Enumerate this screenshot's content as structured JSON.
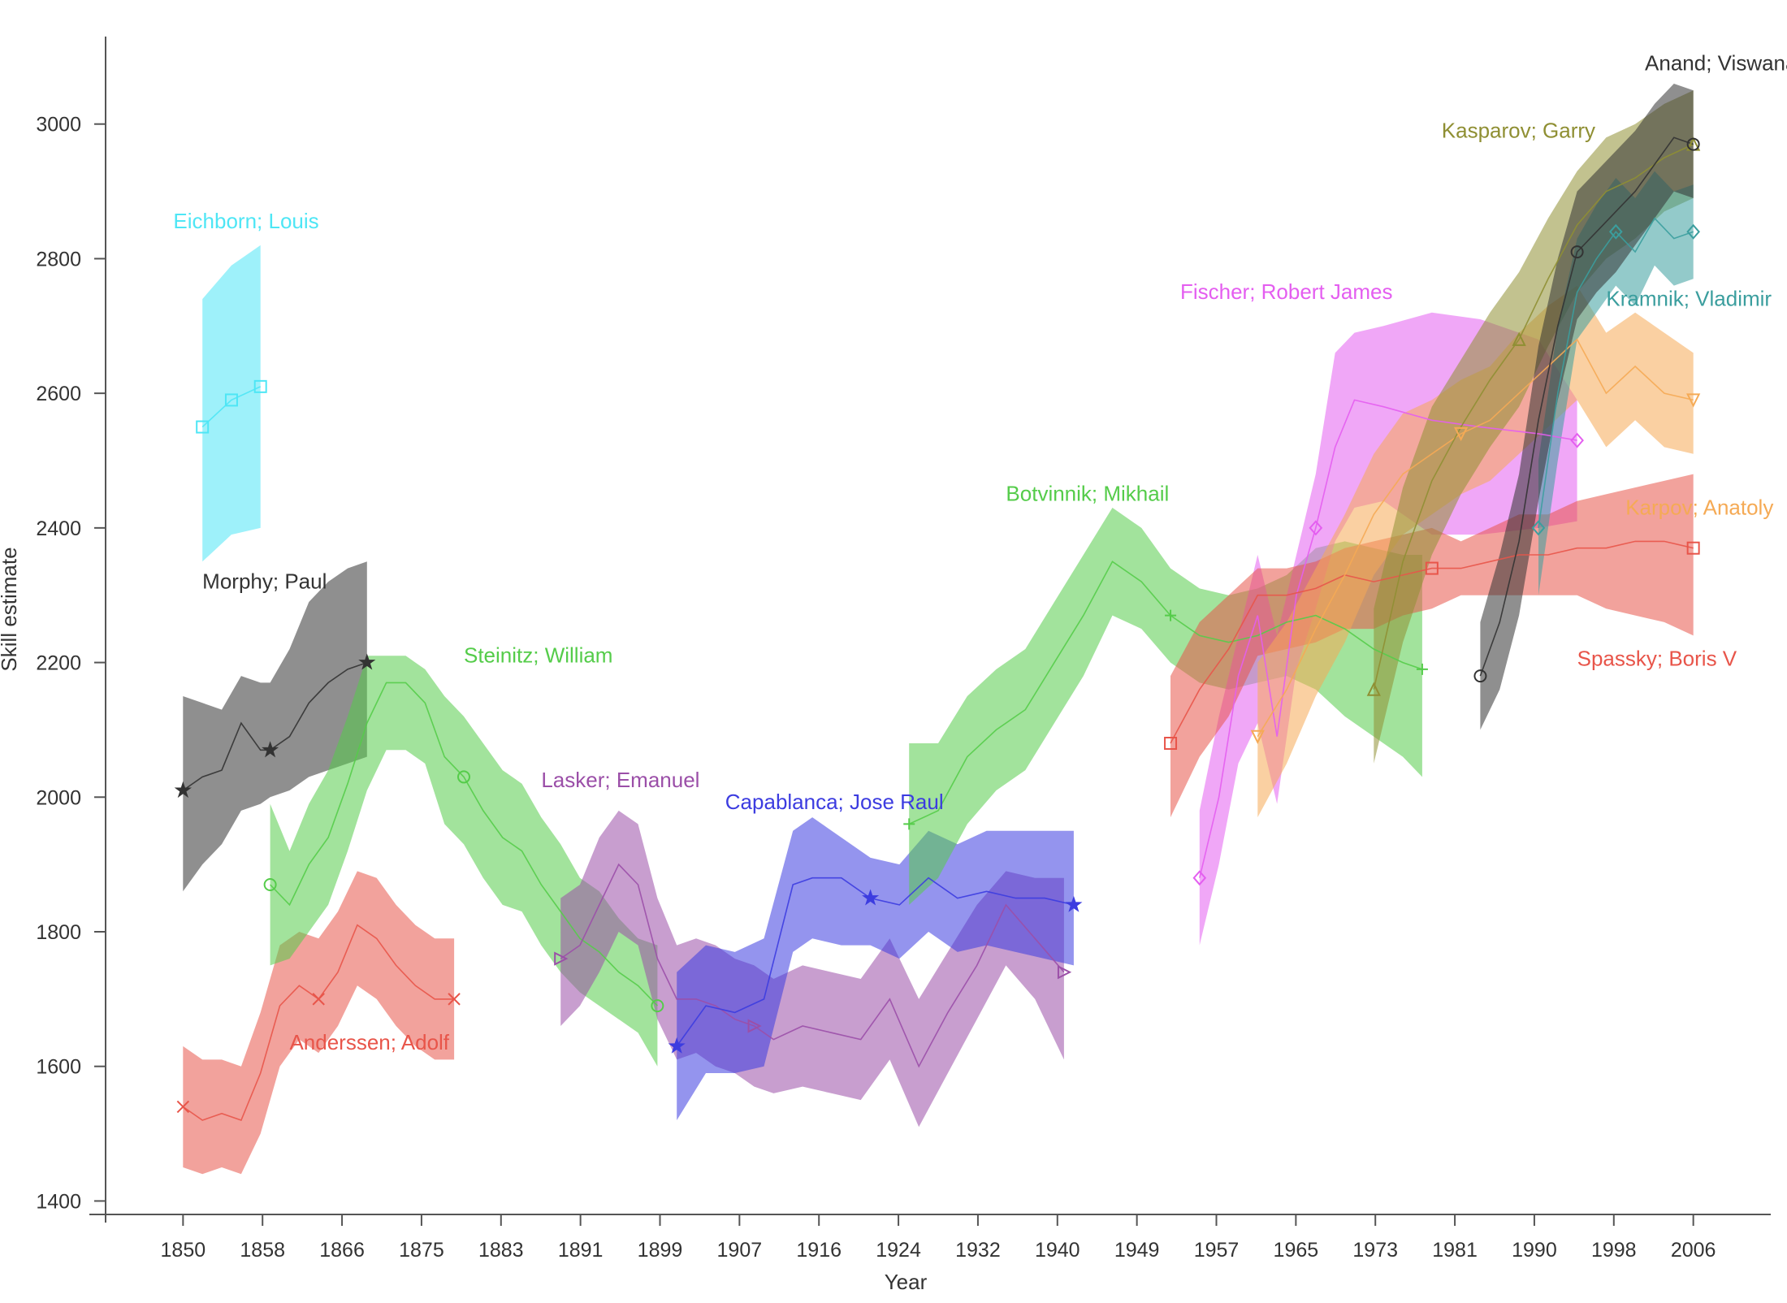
{
  "chart_data": {
    "type": "area",
    "title": "",
    "xlabel": "Year",
    "ylabel": "Skill estimate",
    "xlim": [
      1842,
      2014
    ],
    "ylim": [
      1380,
      3130
    ],
    "x_tick_labels": [
      "1850",
      "1858",
      "1866",
      "1875",
      "1883",
      "1891",
      "1899",
      "1907",
      "1916",
      "1924",
      "1932",
      "1940",
      "1949",
      "1957",
      "1965",
      "1973",
      "1981",
      "1990",
      "1998",
      "2006"
    ],
    "y_ticks": [
      1400,
      1600,
      1800,
      2000,
      2200,
      2400,
      2600,
      2800,
      3000
    ],
    "y_tick_labels": [
      "1400",
      "1600",
      "1800",
      "2000",
      "2200",
      "2400",
      "2600",
      "2800",
      "3000"
    ],
    "grid": false,
    "legend": "none",
    "series": [
      {
        "name": "Anderssen; Adolf",
        "color": "#e8554a",
        "marker": "x",
        "x": [
          1850,
          1852,
          1854,
          1856,
          1858,
          1860,
          1862,
          1864,
          1866,
          1868,
          1870,
          1872,
          1874,
          1876,
          1878
        ],
        "y": [
          1540,
          1520,
          1530,
          1520,
          1590,
          1690,
          1720,
          1700,
          1740,
          1810,
          1790,
          1750,
          1720,
          1700,
          1700
        ],
        "low": [
          1450,
          1440,
          1450,
          1440,
          1500,
          1600,
          1640,
          1620,
          1660,
          1720,
          1700,
          1660,
          1630,
          1610,
          1610
        ],
        "high": [
          1630,
          1610,
          1610,
          1600,
          1680,
          1780,
          1800,
          1790,
          1830,
          1890,
          1880,
          1840,
          1810,
          1790,
          1790
        ],
        "label_pos": [
          1861,
          1625
        ]
      },
      {
        "name": "Eichborn; Louis",
        "color": "#4ee6f5",
        "marker": "square",
        "x": [
          1852,
          1855,
          1858
        ],
        "y": [
          2550,
          2590,
          2610
        ],
        "low": [
          2350,
          2390,
          2400
        ],
        "high": [
          2740,
          2790,
          2820
        ],
        "label_pos": [
          1849,
          2845
        ]
      },
      {
        "name": "Morphy; Paul",
        "color": "#333333",
        "marker": "star",
        "x": [
          1850,
          1852,
          1854,
          1856,
          1858,
          1859,
          1861,
          1863,
          1865,
          1867,
          1869
        ],
        "y": [
          2010,
          2030,
          2040,
          2110,
          2070,
          2070,
          2090,
          2140,
          2170,
          2190,
          2200
        ],
        "low": [
          1860,
          1900,
          1930,
          1980,
          1990,
          2000,
          2010,
          2030,
          2040,
          2050,
          2060
        ],
        "high": [
          2150,
          2140,
          2130,
          2180,
          2170,
          2170,
          2220,
          2290,
          2320,
          2340,
          2350
        ],
        "label_pos": [
          1852,
          2310
        ]
      },
      {
        "name": "Steinitz; William",
        "color": "#55cc4a",
        "marker": "circle",
        "x": [
          1859,
          1861,
          1863,
          1865,
          1867,
          1869,
          1871,
          1873,
          1875,
          1877,
          1879,
          1881,
          1883,
          1885,
          1887,
          1889,
          1891,
          1893,
          1895,
          1897,
          1899
        ],
        "y": [
          1870,
          1840,
          1900,
          1940,
          2020,
          2110,
          2170,
          2170,
          2140,
          2060,
          2030,
          1980,
          1940,
          1920,
          1870,
          1830,
          1790,
          1770,
          1740,
          1720,
          1690
        ],
        "low": [
          1750,
          1760,
          1800,
          1840,
          1920,
          2010,
          2070,
          2070,
          2050,
          1960,
          1930,
          1880,
          1840,
          1830,
          1780,
          1740,
          1710,
          1690,
          1670,
          1650,
          1600
        ],
        "high": [
          1990,
          1920,
          1990,
          2040,
          2120,
          2210,
          2210,
          2210,
          2190,
          2150,
          2120,
          2080,
          2040,
          2020,
          1970,
          1930,
          1880,
          1860,
          1820,
          1790,
          1780
        ],
        "label_pos": [
          1879,
          2200
        ]
      },
      {
        "name": "Lasker; Emanuel",
        "color": "#9b4fa8",
        "marker": "triangle-right",
        "x": [
          1889,
          1891,
          1893,
          1895,
          1897,
          1899,
          1901,
          1903,
          1905,
          1907,
          1909,
          1911,
          1914,
          1917,
          1920,
          1923,
          1926,
          1929,
          1932,
          1935,
          1938,
          1941
        ],
        "y": [
          1760,
          1780,
          1840,
          1900,
          1870,
          1760,
          1700,
          1700,
          1690,
          1670,
          1660,
          1640,
          1660,
          1650,
          1640,
          1700,
          1600,
          1680,
          1750,
          1840,
          1790,
          1740
        ],
        "low": [
          1660,
          1690,
          1740,
          1800,
          1780,
          1670,
          1610,
          1620,
          1600,
          1590,
          1570,
          1560,
          1570,
          1560,
          1550,
          1610,
          1510,
          1590,
          1670,
          1750,
          1700,
          1610
        ],
        "high": [
          1850,
          1870,
          1940,
          1980,
          1960,
          1850,
          1780,
          1790,
          1780,
          1760,
          1750,
          1730,
          1750,
          1740,
          1730,
          1790,
          1700,
          1770,
          1840,
          1890,
          1880,
          1880
        ],
        "label_pos": [
          1887,
          2015
        ]
      },
      {
        "name": "Capablanca; Jose Raul",
        "color": "#3c3ce0",
        "marker": "star",
        "x": [
          1901,
          1904,
          1907,
          1910,
          1913,
          1915,
          1918,
          1921,
          1924,
          1927,
          1930,
          1933,
          1936,
          1939,
          1942
        ],
        "y": [
          1630,
          1690,
          1680,
          1700,
          1870,
          1880,
          1880,
          1850,
          1840,
          1880,
          1850,
          1860,
          1850,
          1850,
          1840
        ],
        "low": [
          1520,
          1590,
          1590,
          1600,
          1770,
          1790,
          1780,
          1780,
          1760,
          1800,
          1770,
          1780,
          1770,
          1760,
          1750
        ],
        "high": [
          1740,
          1780,
          1770,
          1790,
          1950,
          1970,
          1940,
          1910,
          1900,
          1950,
          1930,
          1950,
          1950,
          1950,
          1950
        ],
        "label_pos": [
          1906,
          1982
        ]
      },
      {
        "name": "Botvinnik; Mikhail",
        "color": "#55cc4a",
        "marker": "plus",
        "x": [
          1925,
          1928,
          1931,
          1934,
          1937,
          1940,
          1943,
          1946,
          1949,
          1952,
          1955,
          1958,
          1961,
          1964,
          1967,
          1970,
          1973,
          1976,
          1978
        ],
        "y": [
          1960,
          1980,
          2060,
          2100,
          2130,
          2200,
          2270,
          2350,
          2320,
          2270,
          2240,
          2230,
          2240,
          2260,
          2270,
          2250,
          2220,
          2200,
          2190
        ],
        "low": [
          1840,
          1880,
          1960,
          2010,
          2040,
          2110,
          2180,
          2270,
          2250,
          2200,
          2170,
          2160,
          2170,
          2180,
          2160,
          2120,
          2090,
          2060,
          2030
        ],
        "high": [
          2080,
          2080,
          2150,
          2190,
          2220,
          2290,
          2360,
          2430,
          2400,
          2340,
          2310,
          2300,
          2310,
          2330,
          2370,
          2380,
          2370,
          2360,
          2360
        ],
        "label_pos": [
          1935,
          2440
        ]
      },
      {
        "name": "Fischer; Robert James",
        "color": "#e45ef0",
        "marker": "diamond",
        "x": [
          1955,
          1957,
          1959,
          1961,
          1963,
          1965,
          1967,
          1969,
          1971,
          1974,
          1979,
          1984,
          1990,
          1994
        ],
        "y": [
          1880,
          2000,
          2180,
          2270,
          2090,
          2300,
          2400,
          2520,
          2590,
          2580,
          2560,
          2550,
          2540,
          2530
        ],
        "low": [
          1780,
          1900,
          2050,
          2110,
          1990,
          2190,
          2280,
          2380,
          2430,
          2440,
          2390,
          2390,
          2400,
          2410
        ],
        "high": [
          1980,
          2120,
          2240,
          2360,
          2240,
          2360,
          2480,
          2660,
          2690,
          2700,
          2720,
          2710,
          2680,
          2590
        ],
        "label_pos": [
          1953,
          2740
        ]
      },
      {
        "name": "Spassky; Boris V",
        "color": "#e8554a",
        "marker": "square",
        "x": [
          1952,
          1955,
          1958,
          1961,
          1964,
          1967,
          1970,
          1973,
          1976,
          1979,
          1982,
          1985,
          1988,
          1991,
          1994,
          1997,
          2000,
          2003,
          2006
        ],
        "y": [
          2080,
          2160,
          2220,
          2300,
          2300,
          2310,
          2330,
          2320,
          2330,
          2340,
          2340,
          2350,
          2360,
          2360,
          2370,
          2370,
          2380,
          2380,
          2370
        ],
        "low": [
          1970,
          2060,
          2120,
          2210,
          2220,
          2230,
          2250,
          2250,
          2270,
          2280,
          2300,
          2300,
          2300,
          2300,
          2300,
          2280,
          2270,
          2260,
          2240
        ],
        "high": [
          2180,
          2260,
          2300,
          2340,
          2340,
          2350,
          2370,
          2380,
          2390,
          2400,
          2380,
          2400,
          2420,
          2420,
          2440,
          2450,
          2460,
          2470,
          2480
        ],
        "label_pos": [
          1994,
          2195
        ]
      },
      {
        "name": "Karpov; Anatoly",
        "color": "#f5aa55",
        "marker": "triangle-down",
        "x": [
          1961,
          1964,
          1967,
          1970,
          1973,
          1976,
          1979,
          1982,
          1985,
          1988,
          1991,
          1994,
          1997,
          2000,
          2003,
          2006
        ],
        "y": [
          2090,
          2160,
          2250,
          2330,
          2420,
          2480,
          2510,
          2540,
          2560,
          2600,
          2640,
          2680,
          2600,
          2640,
          2600,
          2590
        ],
        "low": [
          1970,
          2050,
          2150,
          2230,
          2330,
          2390,
          2420,
          2450,
          2470,
          2510,
          2550,
          2590,
          2520,
          2560,
          2520,
          2510
        ],
        "high": [
          2200,
          2260,
          2340,
          2420,
          2510,
          2570,
          2590,
          2620,
          2640,
          2690,
          2730,
          2760,
          2690,
          2720,
          2690,
          2660
        ],
        "label_pos": [
          1999,
          2420
        ]
      },
      {
        "name": "Kasparov; Garry",
        "color": "#8f8f33",
        "marker": "triangle-up",
        "x": [
          1973,
          1976,
          1979,
          1982,
          1985,
          1988,
          1991,
          1994,
          1997,
          2000,
          2003,
          2006
        ],
        "y": [
          2160,
          2350,
          2470,
          2550,
          2620,
          2680,
          2770,
          2850,
          2900,
          2920,
          2950,
          2970
        ],
        "low": [
          2050,
          2230,
          2360,
          2450,
          2520,
          2580,
          2670,
          2750,
          2800,
          2830,
          2870,
          2890
        ],
        "high": [
          2280,
          2460,
          2580,
          2650,
          2720,
          2780,
          2860,
          2930,
          2980,
          3000,
          3030,
          3050
        ],
        "label_pos": [
          1980,
          2980
        ]
      },
      {
        "name": "Kramnik; Vladimir",
        "color": "#3b9e9e",
        "marker": "diamond",
        "x": [
          1990,
          1992,
          1994,
          1996,
          1998,
          2000,
          2002,
          2004,
          2006
        ],
        "y": [
          2400,
          2600,
          2750,
          2800,
          2840,
          2810,
          2860,
          2830,
          2840
        ],
        "low": [
          2300,
          2500,
          2680,
          2720,
          2760,
          2730,
          2790,
          2760,
          2770
        ],
        "high": [
          2500,
          2700,
          2830,
          2880,
          2920,
          2890,
          2930,
          2900,
          2910
        ],
        "label_pos": [
          1997,
          2730
        ]
      },
      {
        "name": "Anand; Viswanathan",
        "color": "#333333",
        "marker": "circle",
        "x": [
          1984,
          1986,
          1988,
          1990,
          1992,
          1994,
          1996,
          1998,
          2000,
          2002,
          2004,
          2006
        ],
        "y": [
          2180,
          2260,
          2380,
          2560,
          2700,
          2810,
          2840,
          2870,
          2900,
          2940,
          2980,
          2970
        ],
        "low": [
          2100,
          2160,
          2270,
          2440,
          2590,
          2710,
          2750,
          2780,
          2820,
          2860,
          2900,
          2890
        ],
        "high": [
          2260,
          2360,
          2480,
          2670,
          2800,
          2900,
          2930,
          2960,
          2990,
          3030,
          3060,
          3050
        ],
        "label_pos": [
          2001,
          3080
        ]
      }
    ]
  }
}
